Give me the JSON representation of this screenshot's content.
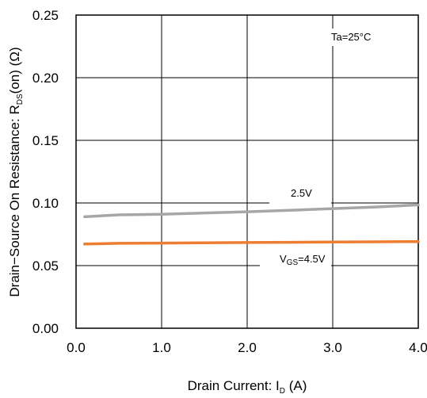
{
  "chart_data": {
    "type": "line",
    "xlabel": "Drain Current: I",
    "xlabel_sub": "D",
    "xlabel_unit": " (A)",
    "ylabel": "Drain−Source On Resistance: R",
    "ylabel_sub": "DS",
    "ylabel_unit": "(on) (Ω)",
    "xlim": [
      0,
      4
    ],
    "ylim": [
      0,
      0.25
    ],
    "x_ticks": [
      0,
      1,
      2,
      3,
      4
    ],
    "x_tick_labels": [
      "0.0",
      "1.0",
      "2.0",
      "3.0",
      "4.0"
    ],
    "y_ticks": [
      0,
      0.05,
      0.1,
      0.15,
      0.2,
      0.25
    ],
    "y_tick_labels": [
      "0.00",
      "0.05",
      "0.10",
      "0.15",
      "0.20",
      "0.25"
    ],
    "grid": true,
    "annotations": {
      "temperature": "Ta=25°C",
      "series_25_label": "2.5V",
      "series_45_label_main": "V",
      "series_45_label_sub": "GS",
      "series_45_label_rest": "=4.5V"
    },
    "series": [
      {
        "name": "2.5V",
        "color": "#a6a6a6",
        "x": [
          0.1,
          0.5,
          1.0,
          1.5,
          2.0,
          2.5,
          3.0,
          3.5,
          4.0
        ],
        "y": [
          0.089,
          0.0905,
          0.091,
          0.092,
          0.093,
          0.0942,
          0.0955,
          0.0968,
          0.0985
        ]
      },
      {
        "name": "VGS=4.5V",
        "color": "#ed7d31",
        "x": [
          0.1,
          0.5,
          1.0,
          1.5,
          2.0,
          2.5,
          3.0,
          3.5,
          4.0
        ],
        "y": [
          0.0672,
          0.0678,
          0.068,
          0.0682,
          0.0684,
          0.0686,
          0.0688,
          0.069,
          0.0692
        ]
      }
    ]
  }
}
